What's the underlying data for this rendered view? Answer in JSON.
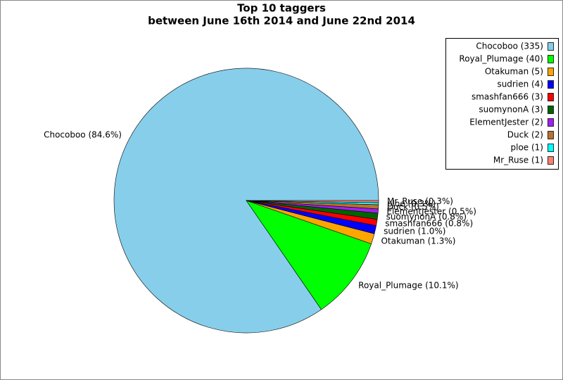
{
  "chart_data": {
    "type": "pie",
    "title": "Top 10 taggers",
    "subtitle": "between June 16th 2014 and June 22nd 2014",
    "categories": [
      "Chocoboo",
      "Royal_Plumage",
      "Otakuman",
      "sudrien",
      "smashfan666",
      "suomynonA",
      "ElementJester",
      "Duck",
      "ploe",
      "Mr_Ruse"
    ],
    "values": [
      335,
      40,
      5,
      4,
      3,
      3,
      2,
      2,
      1,
      1
    ],
    "value_labels": [
      "Chocoboo (84.6%)",
      "Royal_Plumage (10.1%)",
      "Otakuman (1.3%)",
      "sudrien (1.0%)",
      "smashfan666 (0.8%)",
      "suomynonA (0.8%)",
      "ElementJester (0.5%)",
      "Duck (0.5%)",
      "ploe (0.3%)",
      "Mr_Ruse (0.3%)"
    ],
    "legend_labels": [
      "Chocoboo (335)",
      "Royal_Plumage (40)",
      "Otakuman (5)",
      "sudrien (4)",
      "smashfan666 (3)",
      "suomynonA (3)",
      "ElementJester (2)",
      "Duck (2)",
      "ploe (1)",
      "Mr_Ruse (1)"
    ],
    "colors": [
      "#87ceeb",
      "#00ff00",
      "#ffa500",
      "#0000ff",
      "#ff0000",
      "#006400",
      "#a020f0",
      "#b8732e",
      "#00ffff",
      "#fa8072"
    ],
    "legend": "top-right"
  }
}
